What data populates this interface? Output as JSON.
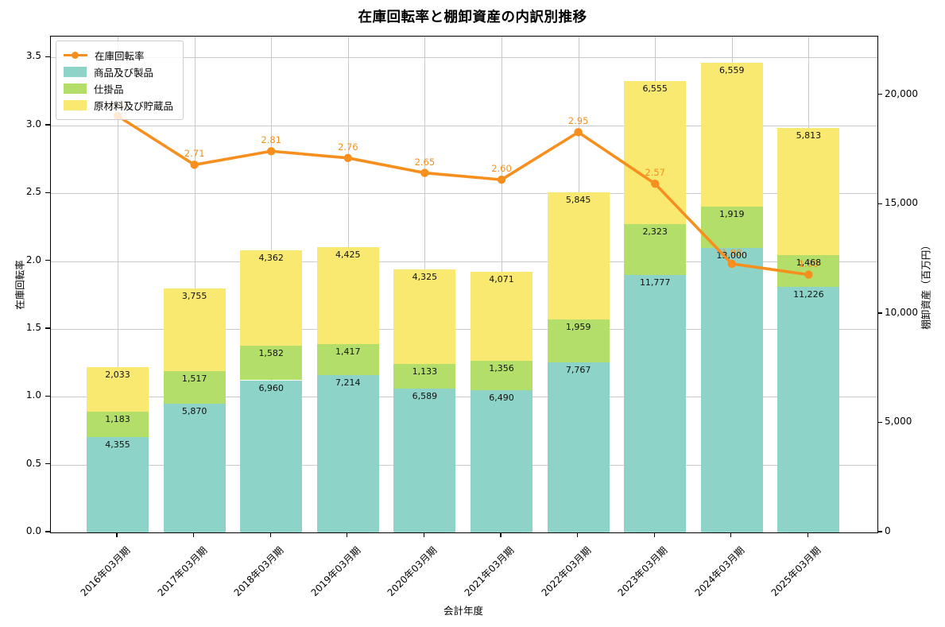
{
  "title": "在庫回転率と棚卸資産の内訳別推移",
  "chart_data": {
    "type": "bar",
    "subtype": "stacked-bar-with-line",
    "title": "在庫回転率と棚卸資産の内訳別推移",
    "xlabel": "会計年度",
    "ylabel_left": "在庫回転率",
    "ylabel_right": "棚卸資産（百万円）",
    "grid": true,
    "legend_position": "upper-left-inside",
    "categories": [
      "2016年03月期",
      "2017年03月期",
      "2018年03月期",
      "2019年03月期",
      "2020年03月期",
      "2021年03月期",
      "2022年03月期",
      "2023年03月期",
      "2024年03月期",
      "2025年03月期"
    ],
    "line": {
      "name": "在庫回転率",
      "axis": "left",
      "color": "#f78f1e",
      "values": [
        3.07,
        2.71,
        2.81,
        2.76,
        2.65,
        2.6,
        2.95,
        2.57,
        1.98,
        1.9
      ]
    },
    "series": [
      {
        "name": "商品及び製品",
        "color": "#8dd3c7",
        "values": [
          4355,
          5870,
          6960,
          7214,
          6589,
          6490,
          7767,
          11777,
          13000,
          11226
        ]
      },
      {
        "name": "仕掛品",
        "color": "#b3de69",
        "values": [
          1183,
          1517,
          1582,
          1417,
          1133,
          1356,
          1959,
          2323,
          1919,
          1468
        ]
      },
      {
        "name": "原材料及び貯蔵品",
        "color": "#f9e971",
        "values": [
          2033,
          3755,
          4362,
          4425,
          4325,
          4071,
          5845,
          6555,
          6559,
          5813
        ]
      }
    ],
    "left_axis": {
      "tick_labels": [
        "0.0",
        "0.5",
        "1.0",
        "1.5",
        "2.0",
        "2.5",
        "3.0",
        "3.5"
      ],
      "tick_values": [
        0,
        0.5,
        1,
        1.5,
        2,
        2.5,
        3,
        3.5
      ],
      "max": 3.655
    },
    "right_axis": {
      "tick_labels": [
        "0",
        "5,000",
        "10,000",
        "15,000",
        "20,000"
      ],
      "tick_values": [
        0,
        5000,
        10000,
        15000,
        20000
      ],
      "max": 22680
    }
  },
  "colors": {
    "line": "#f78f1e",
    "bar_teal": "#8dd3c7",
    "bar_green": "#b3de69",
    "bar_yellow": "#f9e971",
    "grid": "#c9c9c9"
  }
}
